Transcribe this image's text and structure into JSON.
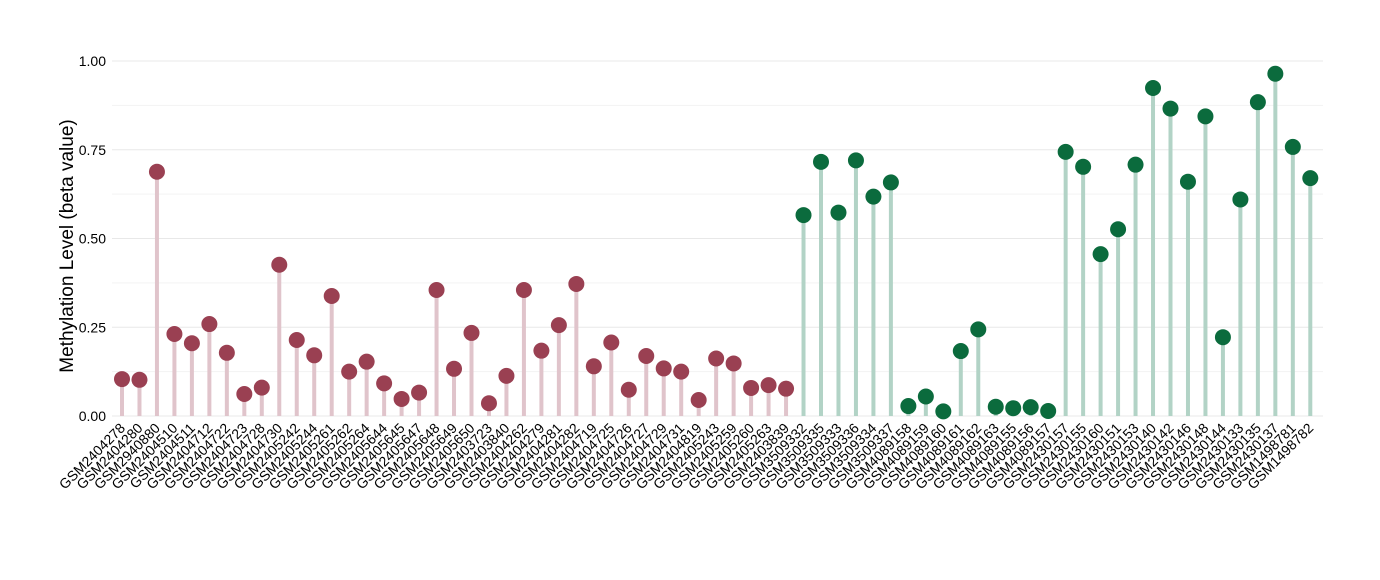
{
  "chart_data": {
    "type": "lollipop",
    "ylabel": "Methylation Level (beta value)",
    "ylim": [
      0,
      1.0
    ],
    "y_ticks": [
      "0.00",
      "0.25",
      "0.50",
      "0.75",
      "1.00"
    ],
    "grid": true,
    "series": [
      {
        "color": "#9a4052",
        "stem_color": "#e0c4cb",
        "points": [
          {
            "x": "GSM2404278",
            "y": 0.104
          },
          {
            "x": "GSM2404280",
            "y": 0.102
          },
          {
            "x": "GSM2940880",
            "y": 0.688
          },
          {
            "x": "GSM2404510",
            "y": 0.231
          },
          {
            "x": "GSM2404511",
            "y": 0.205
          },
          {
            "x": "GSM2404712",
            "y": 0.259
          },
          {
            "x": "GSM2404722",
            "y": 0.178
          },
          {
            "x": "GSM2404723",
            "y": 0.062
          },
          {
            "x": "GSM2404728",
            "y": 0.08
          },
          {
            "x": "GSM2404730",
            "y": 0.426
          },
          {
            "x": "GSM2405242",
            "y": 0.214
          },
          {
            "x": "GSM2405244",
            "y": 0.171
          },
          {
            "x": "GSM2405261",
            "y": 0.338
          },
          {
            "x": "GSM2405262",
            "y": 0.125
          },
          {
            "x": "GSM2405264",
            "y": 0.153
          },
          {
            "x": "GSM2405644",
            "y": 0.092
          },
          {
            "x": "GSM2405645",
            "y": 0.048
          },
          {
            "x": "GSM2405647",
            "y": 0.066
          },
          {
            "x": "GSM2405648",
            "y": 0.355
          },
          {
            "x": "GSM2405649",
            "y": 0.133
          },
          {
            "x": "GSM2405650",
            "y": 0.234
          },
          {
            "x": "GSM2403723",
            "y": 0.036
          },
          {
            "x": "GSM2403840",
            "y": 0.113
          },
          {
            "x": "GSM2404262",
            "y": 0.355
          },
          {
            "x": "GSM2404279",
            "y": 0.184
          },
          {
            "x": "GSM2404281",
            "y": 0.256
          },
          {
            "x": "GSM2404282",
            "y": 0.372
          },
          {
            "x": "GSM2404719",
            "y": 0.14
          },
          {
            "x": "GSM2404725",
            "y": 0.207
          },
          {
            "x": "GSM2404726",
            "y": 0.074
          },
          {
            "x": "GSM2404727",
            "y": 0.169
          },
          {
            "x": "GSM2404729",
            "y": 0.134
          },
          {
            "x": "GSM2404731",
            "y": 0.125
          },
          {
            "x": "GSM2404819",
            "y": 0.045
          },
          {
            "x": "GSM2405243",
            "y": 0.162
          },
          {
            "x": "GSM2405259",
            "y": 0.148
          },
          {
            "x": "GSM2405260",
            "y": 0.079
          },
          {
            "x": "GSM2405263",
            "y": 0.087
          },
          {
            "x": "GSM2403839",
            "y": 0.077
          }
        ]
      },
      {
        "color": "#0b6b3d",
        "stem_color": "#b2d3c6",
        "points": [
          {
            "x": "GSM3509332",
            "y": 0.566
          },
          {
            "x": "GSM3509335",
            "y": 0.716
          },
          {
            "x": "GSM3509333",
            "y": 0.573
          },
          {
            "x": "GSM3509336",
            "y": 0.72
          },
          {
            "x": "GSM3509334",
            "y": 0.618
          },
          {
            "x": "GSM3509337",
            "y": 0.658
          },
          {
            "x": "GSM4089158",
            "y": 0.028
          },
          {
            "x": "GSM4089159",
            "y": 0.055
          },
          {
            "x": "GSM4089160",
            "y": 0.013
          },
          {
            "x": "GSM4089161",
            "y": 0.183
          },
          {
            "x": "GSM4089162",
            "y": 0.244
          },
          {
            "x": "GSM4089163",
            "y": 0.026
          },
          {
            "x": "GSM4089155",
            "y": 0.022
          },
          {
            "x": "GSM4089156",
            "y": 0.025
          },
          {
            "x": "GSM4089157",
            "y": 0.014
          },
          {
            "x": "GSM2430157",
            "y": 0.744
          },
          {
            "x": "GSM2430155",
            "y": 0.702
          },
          {
            "x": "GSM2430160",
            "y": 0.456
          },
          {
            "x": "GSM2430151",
            "y": 0.526
          },
          {
            "x": "GSM2430153",
            "y": 0.708
          },
          {
            "x": "GSM2430140",
            "y": 0.924
          },
          {
            "x": "GSM2430142",
            "y": 0.866
          },
          {
            "x": "GSM2430146",
            "y": 0.66
          },
          {
            "x": "GSM2430148",
            "y": 0.844
          },
          {
            "x": "GSM2430144",
            "y": 0.222
          },
          {
            "x": "GSM2430133",
            "y": 0.61
          },
          {
            "x": "GSM2430135",
            "y": 0.884
          },
          {
            "x": "GSM2430137",
            "y": 0.964
          },
          {
            "x": "GSM1498781",
            "y": 0.758
          },
          {
            "x": "GSM1498782",
            "y": 0.67
          }
        ]
      }
    ]
  }
}
